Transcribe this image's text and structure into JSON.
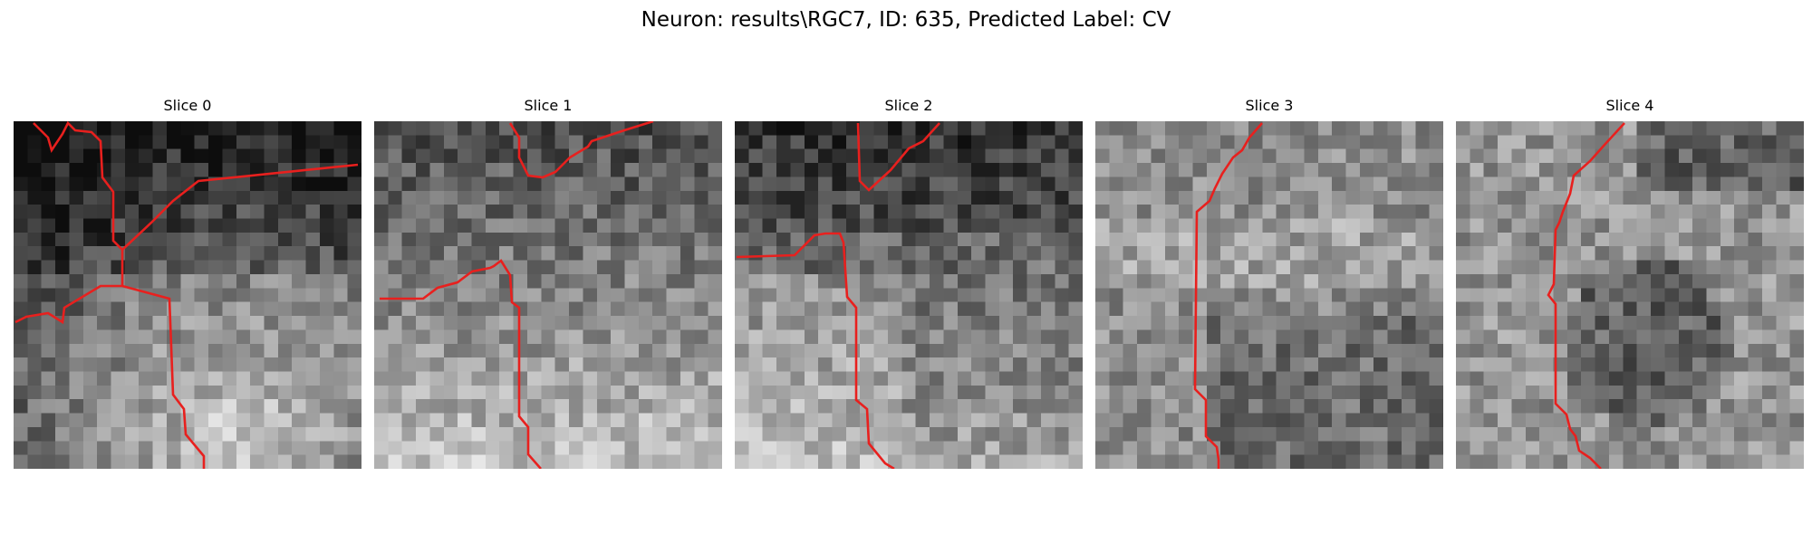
{
  "figure": {
    "title": "Neuron: results\\RGC7, ID: 635, Predicted Label: CV",
    "contour_color": "#e8201e",
    "slices": [
      {
        "title": "Slice 0",
        "seed": 11,
        "brightness": "bright-bottom-right"
      },
      {
        "title": "Slice 1",
        "seed": 23,
        "brightness": "bright-bottom"
      },
      {
        "title": "Slice 2",
        "seed": 37,
        "brightness": "bright-bottom-left"
      },
      {
        "title": "Slice 3",
        "seed": 53,
        "brightness": "mixed"
      },
      {
        "title": "Slice 4",
        "seed": 71,
        "brightness": "mixed-dark-center"
      }
    ]
  }
}
